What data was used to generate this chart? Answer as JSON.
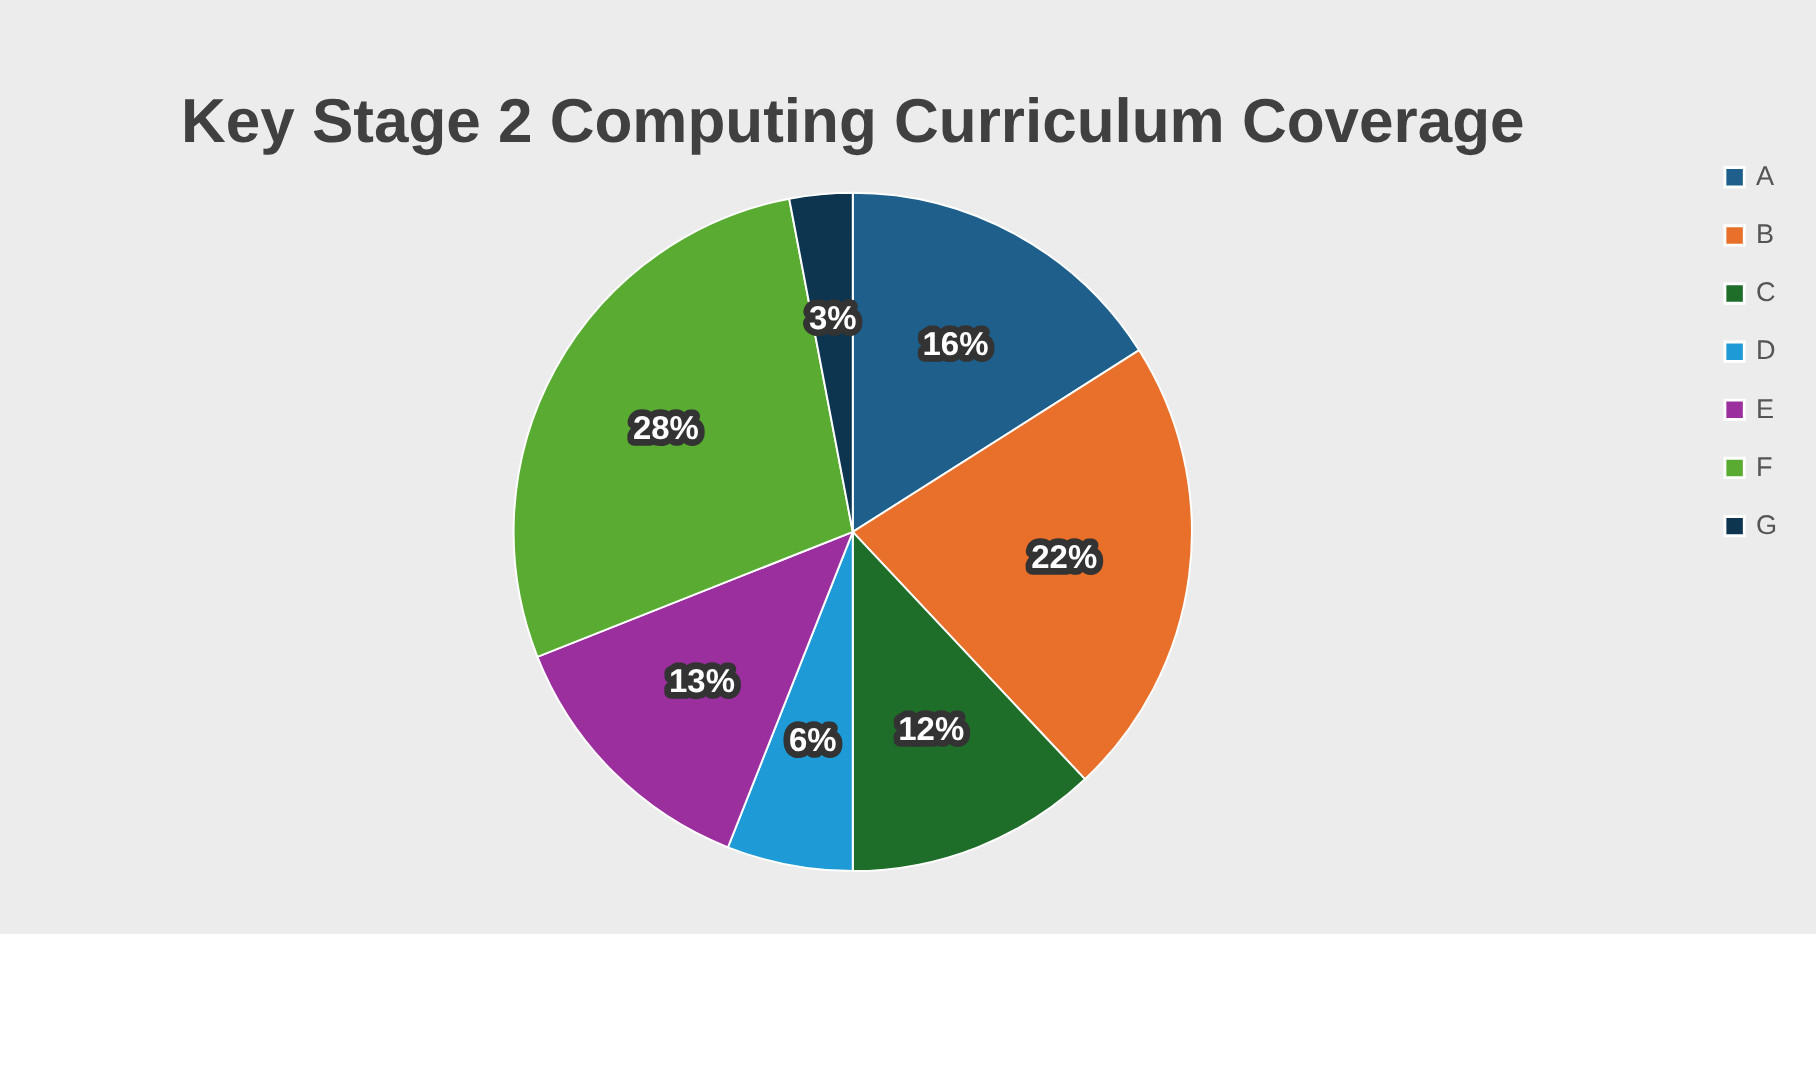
{
  "chart_data": {
    "type": "pie",
    "title": "Key Stage 2 Computing Curriculum Coverage",
    "categories": [
      "A",
      "B",
      "C",
      "D",
      "E",
      "F",
      "G"
    ],
    "values": [
      16,
      22,
      12,
      6,
      13,
      28,
      3
    ],
    "colors": [
      "#1f5f8b",
      "#e8702a",
      "#1e6e2a",
      "#1e9ad6",
      "#9b2f9e",
      "#5aab32",
      "#0d3550"
    ],
    "value_labels": [
      "16%",
      "22%",
      "12%",
      "6%",
      "13%",
      "28%",
      "3%"
    ],
    "legend": "right"
  }
}
